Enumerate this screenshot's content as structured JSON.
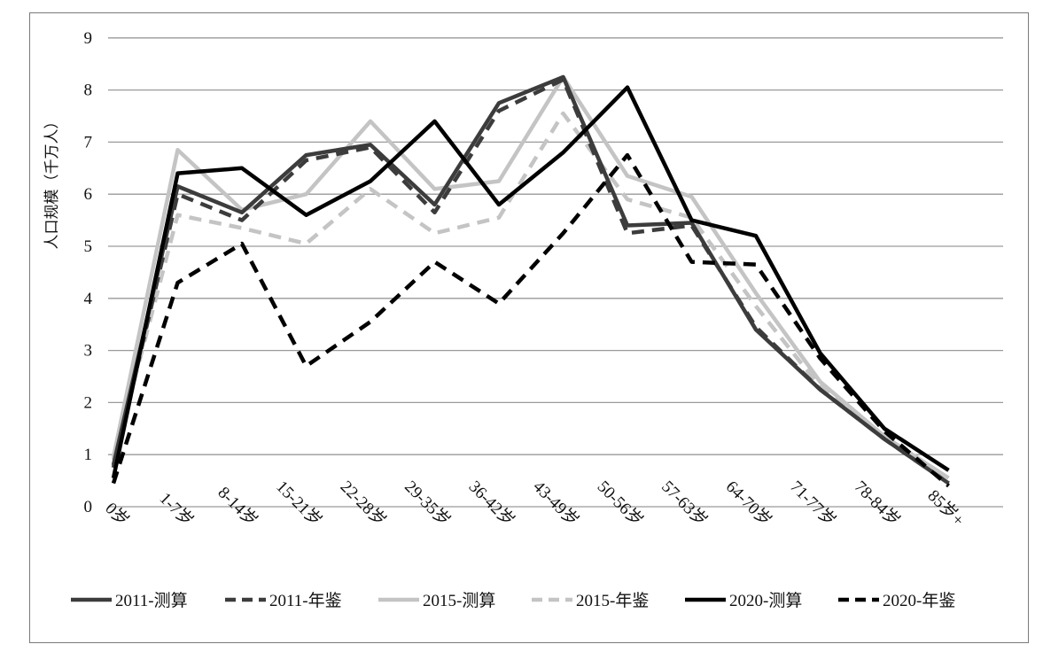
{
  "chart_data": {
    "type": "line",
    "title": "",
    "xlabel": "",
    "ylabel": "人口规模（千万人）",
    "ylim": [
      0,
      9
    ],
    "yticks": [
      "0",
      "1",
      "2",
      "3",
      "4",
      "5",
      "6",
      "7",
      "8",
      "9"
    ],
    "categories": [
      "0岁",
      "1-7岁",
      "8-14岁",
      "15-21岁",
      "22-28岁",
      "29-35岁",
      "36-42岁",
      "43-49岁",
      "50-56岁",
      "57-63岁",
      "64-70岁",
      "71-77岁",
      "78-84岁",
      "85岁+"
    ],
    "grid": true,
    "legend_position": "bottom",
    "series": [
      {
        "name": "2011-测算",
        "color": "#3c3c3c",
        "dash": "solid",
        "values": [
          0.8,
          6.15,
          5.65,
          6.75,
          6.95,
          5.8,
          7.75,
          8.25,
          5.4,
          5.45,
          3.4,
          2.25,
          1.3,
          0.45
        ]
      },
      {
        "name": "2011-年鉴",
        "color": "#3c3c3c",
        "dash": "dashed",
        "values": [
          0.75,
          6.0,
          5.5,
          6.65,
          6.9,
          5.65,
          7.6,
          8.2,
          5.25,
          5.4,
          3.45,
          2.25,
          1.3,
          0.45
        ]
      },
      {
        "name": "2015-测算",
        "color": "#c4c4c4",
        "dash": "solid",
        "values": [
          0.95,
          6.85,
          5.7,
          6.0,
          7.4,
          6.1,
          6.25,
          8.25,
          6.35,
          5.95,
          4.1,
          2.4,
          1.35,
          0.55
        ]
      },
      {
        "name": "2015-年鉴",
        "color": "#c4c4c4",
        "dash": "dashed",
        "values": [
          0.9,
          5.6,
          5.35,
          5.05,
          6.1,
          5.25,
          5.55,
          7.55,
          5.9,
          5.55,
          3.85,
          2.3,
          1.3,
          0.5
        ]
      },
      {
        "name": "2020-测算",
        "color": "#000000",
        "dash": "solid",
        "values": [
          0.55,
          6.4,
          6.5,
          5.6,
          6.25,
          7.4,
          5.8,
          6.8,
          8.05,
          5.5,
          5.2,
          2.95,
          1.5,
          0.7
        ]
      },
      {
        "name": "2020-年鉴",
        "color": "#000000",
        "dash": "dashed",
        "values": [
          0.45,
          4.3,
          5.05,
          2.7,
          3.55,
          4.7,
          3.9,
          5.25,
          6.75,
          4.7,
          4.65,
          2.85,
          1.45,
          0.4
        ]
      }
    ]
  }
}
